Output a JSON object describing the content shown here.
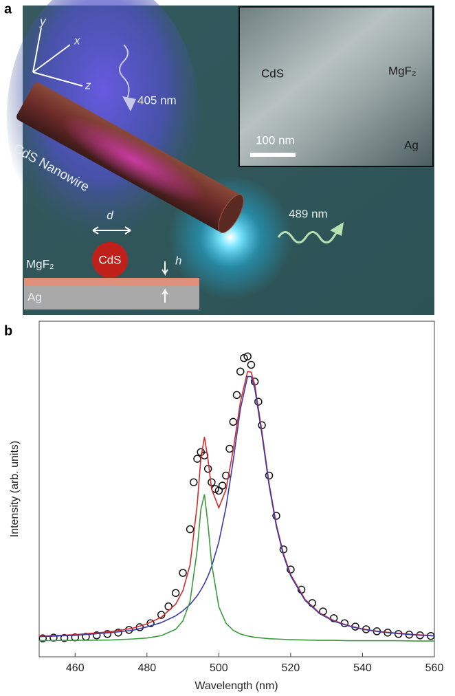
{
  "illustration": {
    "panel_label": "a",
    "axes": {
      "y": "y",
      "x": "x",
      "z": "z"
    },
    "excitation": "405 nm",
    "nanowire": "CdS Nanowire",
    "inset": {
      "cds": "CdS",
      "mgf2": "MgF₂",
      "scale": "100 nm",
      "ag": "Ag"
    },
    "emission": "489 nm",
    "cross_section": {
      "d": "d",
      "cds": "CdS",
      "mgf2": "MgF₂",
      "h": "h",
      "ag": "Ag"
    }
  },
  "chart_data": {
    "type": "line",
    "panel_label": "b",
    "xlabel": "Wavelength (nm)",
    "ylabel": "Intensity (arb. units)",
    "xlim": [
      450,
      560
    ],
    "xticks": [
      460,
      480,
      500,
      520,
      540,
      560
    ],
    "ylim": [
      0,
      1
    ],
    "x": [
      450,
      460,
      470,
      476,
      480,
      484,
      488,
      490,
      492,
      494,
      495,
      496,
      497,
      498,
      500,
      502,
      504,
      506,
      508,
      509,
      510,
      512,
      514,
      516,
      518,
      520,
      524,
      528,
      532,
      536,
      540,
      545,
      550,
      555,
      560
    ],
    "series": [
      {
        "color": "#111111",
        "marker": "circle",
        "x": [
          451,
          454,
          457,
          460,
          463,
          466,
          469,
          472,
          475,
          478,
          481,
          484,
          486,
          488,
          490,
          492,
          493,
          494,
          495,
          496,
          497,
          498,
          499,
          500,
          501,
          502,
          503,
          504,
          505,
          506,
          507,
          508,
          509,
          510,
          511,
          512,
          514,
          516,
          518,
          520,
          523,
          526,
          529,
          532,
          535,
          538,
          541,
          544,
          547,
          550,
          553,
          556,
          559
        ],
        "values": [
          0.055,
          0.057,
          0.056,
          0.058,
          0.06,
          0.064,
          0.068,
          0.072,
          0.08,
          0.088,
          0.1,
          0.125,
          0.15,
          0.19,
          0.25,
          0.38,
          0.52,
          0.59,
          0.61,
          0.6,
          0.56,
          0.52,
          0.5,
          0.495,
          0.51,
          0.54,
          0.62,
          0.7,
          0.78,
          0.85,
          0.89,
          0.895,
          0.87,
          0.82,
          0.76,
          0.69,
          0.54,
          0.42,
          0.32,
          0.26,
          0.2,
          0.16,
          0.135,
          0.115,
          0.1,
          0.09,
          0.082,
          0.076,
          0.072,
          0.068,
          0.066,
          0.064,
          0.062
        ]
      },
      {
        "color": "#d42a2a",
        "values": [
          0.061,
          0.066,
          0.075,
          0.085,
          0.098,
          0.118,
          0.157,
          0.197,
          0.274,
          0.455,
          0.591,
          0.655,
          0.587,
          0.499,
          0.444,
          0.498,
          0.616,
          0.759,
          0.85,
          0.848,
          0.811,
          0.671,
          0.517,
          0.395,
          0.307,
          0.245,
          0.171,
          0.131,
          0.108,
          0.093,
          0.083,
          0.075,
          0.07,
          0.066,
          0.063
        ]
      },
      {
        "color": "#3a3aa8",
        "values": [
          0.06,
          0.064,
          0.072,
          0.079,
          0.089,
          0.102,
          0.122,
          0.137,
          0.156,
          0.182,
          0.199,
          0.218,
          0.241,
          0.269,
          0.342,
          0.445,
          0.584,
          0.738,
          0.835,
          0.835,
          0.8,
          0.662,
          0.51,
          0.389,
          0.302,
          0.241,
          0.168,
          0.129,
          0.106,
          0.092,
          0.082,
          0.074,
          0.069,
          0.065,
          0.062
        ]
      },
      {
        "color": "#3a9a3a",
        "values": [
          0.048,
          0.049,
          0.05,
          0.053,
          0.056,
          0.063,
          0.082,
          0.107,
          0.165,
          0.32,
          0.439,
          0.484,
          0.393,
          0.277,
          0.149,
          0.1,
          0.079,
          0.068,
          0.062,
          0.06,
          0.058,
          0.056,
          0.054,
          0.053,
          0.052,
          0.051,
          0.05,
          0.049,
          0.049,
          0.048,
          0.048,
          0.048,
          0.048,
          0.047,
          0.047
        ]
      }
    ]
  }
}
